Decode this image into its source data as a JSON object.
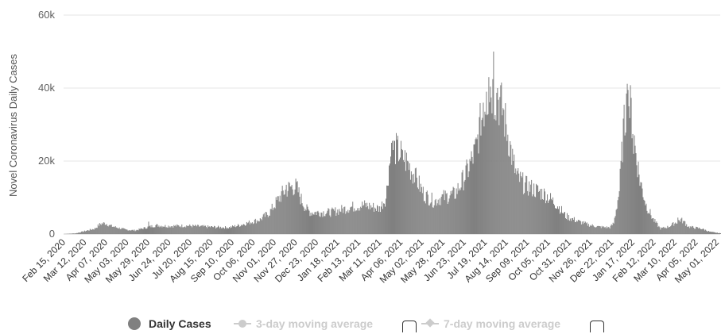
{
  "chart_data": {
    "type": "bar",
    "ylabel": "Novel Coronavirus Daily Cases",
    "y_ticks": [
      "0",
      "20k",
      "40k",
      "60k"
    ],
    "ylim": [
      0,
      60000
    ],
    "grid": true,
    "x_tick_labels": [
      "Feb 15, 2020",
      "Mar 12, 2020",
      "Apr 07, 2020",
      "May 03, 2020",
      "May 29, 2020",
      "Jun 24, 2020",
      "Jul 20, 2020",
      "Aug 15, 2020",
      "Sep 10, 2020",
      "Oct 06, 2020",
      "Nov 01, 2020",
      "Nov 27, 2020",
      "Dec 23, 2020",
      "Jan 18, 2021",
      "Feb 13, 2021",
      "Mar 11, 2021",
      "Apr 06, 2021",
      "May 02, 2021",
      "May 28, 2021",
      "Jun 23, 2021",
      "Jul 19, 2021",
      "Aug 14, 2021",
      "Sep 09, 2021",
      "Oct 05, 2021",
      "Oct 31, 2021",
      "Nov 26, 2021",
      "Dec 22, 2021",
      "Jan 17, 2022",
      "Feb 12, 2022",
      "Mar 10, 2022",
      "Apr 05, 2022",
      "May 01, 2022"
    ],
    "x_range": [
      "Feb 15, 2020",
      "May 25, 2022"
    ],
    "bar_color": "#808080",
    "series": [
      {
        "name": "Daily Cases",
        "visible": true,
        "points": [
          [
            "Feb 15, 2020",
            0
          ],
          [
            "Mar 01, 2020",
            200
          ],
          [
            "Mar 12, 2020",
            800
          ],
          [
            "Mar 25, 2020",
            1500
          ],
          [
            "Apr 01, 2020",
            2800
          ],
          [
            "Apr 07, 2020",
            3000
          ],
          [
            "Apr 15, 2020",
            2200
          ],
          [
            "May 03, 2020",
            1200
          ],
          [
            "May 15, 2020",
            1000
          ],
          [
            "May 29, 2020",
            1800
          ],
          [
            "Jun 10, 2020",
            2400
          ],
          [
            "Jun 24, 2020",
            2200
          ],
          [
            "Jul 20, 2020",
            2300
          ],
          [
            "Aug 15, 2020",
            2000
          ],
          [
            "Sep 10, 2020",
            1800
          ],
          [
            "Sep 25, 2020",
            2500
          ],
          [
            "Oct 06, 2020",
            3200
          ],
          [
            "Oct 20, 2020",
            4000
          ],
          [
            "Nov 01, 2020",
            6000
          ],
          [
            "Nov 10, 2020",
            9000
          ],
          [
            "Nov 18, 2020",
            11500
          ],
          [
            "Nov 27, 2020",
            13000
          ],
          [
            "Dec 05, 2020",
            13000
          ],
          [
            "Dec 10, 2020",
            10000
          ],
          [
            "Dec 17, 2020",
            7000
          ],
          [
            "Dec 23, 2020",
            6000
          ],
          [
            "Jan 18, 2021",
            6000
          ],
          [
            "Feb 13, 2021",
            7500
          ],
          [
            "Mar 01, 2021",
            8000
          ],
          [
            "Mar 11, 2021",
            7500
          ],
          [
            "Mar 20, 2021",
            7000
          ],
          [
            "Mar 28, 2021",
            10000
          ],
          [
            "Apr 01, 2021",
            19000
          ],
          [
            "Apr 06, 2021",
            24000
          ],
          [
            "Apr 12, 2021",
            23000
          ],
          [
            "Apr 20, 2021",
            21000
          ],
          [
            "Apr 26, 2021",
            19000
          ],
          [
            "May 02, 2021",
            16500
          ],
          [
            "May 08, 2021",
            14000
          ],
          [
            "May 15, 2021",
            11000
          ],
          [
            "May 28, 2021",
            9000
          ],
          [
            "Jun 05, 2021",
            10000
          ],
          [
            "Jun 23, 2021",
            11000
          ],
          [
            "Jul 01, 2021",
            14000
          ],
          [
            "Jul 10, 2021",
            18000
          ],
          [
            "Jul 19, 2021",
            23000
          ],
          [
            "Jul 25, 2021",
            30000
          ],
          [
            "Aug 01, 2021",
            37000
          ],
          [
            "Aug 07, 2021",
            41000
          ],
          [
            "Aug 14, 2021",
            38000
          ],
          [
            "Aug 20, 2021",
            36000
          ],
          [
            "Aug 27, 2021",
            30000
          ],
          [
            "Sep 03, 2021",
            22000
          ],
          [
            "Sep 09, 2021",
            16000
          ],
          [
            "Sep 20, 2021",
            13500
          ],
          [
            "Oct 05, 2021",
            12000
          ],
          [
            "Oct 15, 2021",
            11000
          ],
          [
            "Oct 31, 2021",
            8000
          ],
          [
            "Nov 10, 2021",
            5000
          ],
          [
            "Nov 26, 2021",
            3500
          ],
          [
            "Dec 10, 2021",
            2500
          ],
          [
            "Dec 22, 2021",
            2000
          ],
          [
            "Jan 05, 2022",
            1800
          ],
          [
            "Jan 10, 2022",
            3000
          ],
          [
            "Jan 17, 2022",
            12000
          ],
          [
            "Jan 22, 2022",
            28000
          ],
          [
            "Jan 27, 2022",
            37000
          ],
          [
            "Feb 01, 2022",
            34000
          ],
          [
            "Feb 06, 2022",
            24000
          ],
          [
            "Feb 12, 2022",
            15000
          ],
          [
            "Feb 20, 2022",
            8000
          ],
          [
            "Mar 01, 2022",
            4000
          ],
          [
            "Mar 10, 2022",
            1500
          ],
          [
            "Mar 20, 2022",
            2000
          ],
          [
            "Apr 05, 2022",
            4000
          ],
          [
            "Apr 15, 2022",
            2000
          ],
          [
            "May 01, 2022",
            1500
          ],
          [
            "May 12, 2022",
            600
          ],
          [
            "May 25, 2022",
            200
          ]
        ],
        "spikes": [
          [
            "Aug 11, 2021",
            50000
          ],
          [
            "Aug 05, 2021",
            43000
          ],
          [
            "Aug 16, 2021",
            40000
          ],
          [
            "Aug 02, 2021",
            39000
          ],
          [
            "Jul 29, 2021",
            36000
          ],
          [
            "Jan 28, 2022",
            39500
          ],
          [
            "Jan 26, 2022",
            38500
          ],
          [
            "Feb 04, 2022",
            22000
          ],
          [
            "Jul 26, 2021",
            27000
          ],
          [
            "Apr 08, 2021",
            25500
          ],
          [
            "Apr 04, 2021",
            25000
          ],
          [
            "Apr 18, 2021",
            23000
          ],
          [
            "May 04, 2021",
            18000
          ],
          [
            "Aug 23, 2021",
            34500
          ],
          [
            "Sep 05, 2021",
            20000
          ],
          [
            "Jul 21, 2021",
            26000
          ],
          [
            "Apr 01, 2022",
            4500
          ],
          [
            "Apr 10, 2022",
            3500
          ],
          [
            "Nov 22, 2020",
            13500
          ],
          [
            "Jun 01, 2020",
            3400
          ]
        ]
      },
      {
        "name": "3-day moving average",
        "visible": false,
        "points": []
      },
      {
        "name": "7-day moving average",
        "visible": false,
        "points": []
      }
    ]
  },
  "legend": {
    "daily_label": "Daily Cases",
    "ma3_label": "3-day moving average",
    "ma7_label": "7-day moving average",
    "active_color": "#808080",
    "inactive_color": "#cccccc"
  }
}
